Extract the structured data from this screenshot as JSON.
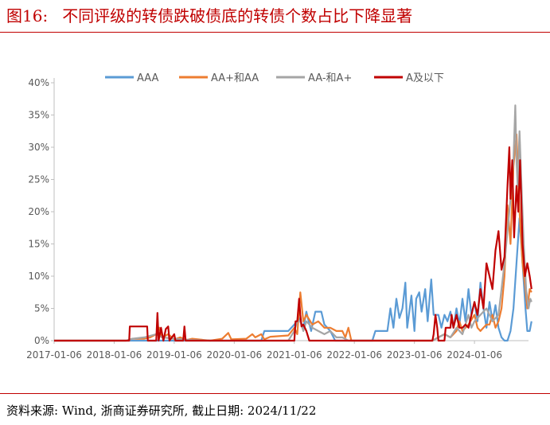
{
  "header": {
    "fig_label": "图16:",
    "title": "不同评级的转债跌破债底的转债个数占比下降显著"
  },
  "footer": {
    "source": "资料来源: Wind, 浙商证券研究所, 截止日期: 2024/11/22"
  },
  "chart_data": {
    "type": "line",
    "y_ticks": [
      "0%",
      "5%",
      "10%",
      "15%",
      "20%",
      "25%",
      "30%",
      "35%",
      "40%"
    ],
    "ylim": [
      0,
      40
    ],
    "x_ticks": [
      "2017-01-06",
      "2018-01-06",
      "2019-01-06",
      "2020-01-06",
      "2021-01-06",
      "2022-01-06",
      "2023-01-06",
      "2024-01-06"
    ],
    "xlim": [
      2017.0,
      2024.9
    ],
    "legend_position": "top",
    "grid": false,
    "series": [
      {
        "name": "AAA",
        "color": "#5b9bd5",
        "points": [
          [
            2017.0,
            0
          ],
          [
            2020.45,
            0
          ],
          [
            2020.5,
            1.5
          ],
          [
            2020.9,
            1.5
          ],
          [
            2021.0,
            2.5
          ],
          [
            2021.08,
            3.5
          ],
          [
            2021.15,
            2
          ],
          [
            2021.2,
            4.5
          ],
          [
            2021.28,
            1.5
          ],
          [
            2021.35,
            4.5
          ],
          [
            2021.45,
            4.5
          ],
          [
            2021.5,
            2.5
          ],
          [
            2021.6,
            1.5
          ],
          [
            2021.68,
            0
          ],
          [
            2022.3,
            0
          ],
          [
            2022.35,
            1.5
          ],
          [
            2022.55,
            1.5
          ],
          [
            2022.6,
            5
          ],
          [
            2022.65,
            2
          ],
          [
            2022.7,
            6.5
          ],
          [
            2022.75,
            3.5
          ],
          [
            2022.8,
            5
          ],
          [
            2022.85,
            9
          ],
          [
            2022.88,
            2
          ],
          [
            2022.95,
            7
          ],
          [
            2023.0,
            1.5
          ],
          [
            2023.03,
            6.5
          ],
          [
            2023.08,
            7.5
          ],
          [
            2023.12,
            4.5
          ],
          [
            2023.18,
            8
          ],
          [
            2023.22,
            3
          ],
          [
            2023.28,
            9.5
          ],
          [
            2023.32,
            4
          ],
          [
            2023.4,
            4
          ],
          [
            2023.45,
            2
          ],
          [
            2023.5,
            4
          ],
          [
            2023.55,
            3
          ],
          [
            2023.6,
            4.5
          ],
          [
            2023.65,
            2
          ],
          [
            2023.7,
            5
          ],
          [
            2023.75,
            2.5
          ],
          [
            2023.8,
            6.5
          ],
          [
            2023.85,
            3
          ],
          [
            2023.9,
            8
          ],
          [
            2023.95,
            4
          ],
          [
            2024.0,
            6
          ],
          [
            2024.05,
            3
          ],
          [
            2024.1,
            9
          ],
          [
            2024.15,
            5
          ],
          [
            2024.2,
            2
          ],
          [
            2024.25,
            6
          ],
          [
            2024.3,
            3
          ],
          [
            2024.35,
            5.5
          ],
          [
            2024.4,
            2
          ],
          [
            2024.45,
            0.5
          ],
          [
            2024.5,
            0
          ],
          [
            2024.55,
            0
          ],
          [
            2024.6,
            1.5
          ],
          [
            2024.65,
            5
          ],
          [
            2024.7,
            12
          ],
          [
            2024.75,
            19
          ],
          [
            2024.8,
            12
          ],
          [
            2024.85,
            5
          ],
          [
            2024.88,
            1.5
          ],
          [
            2024.92,
            1.5
          ],
          [
            2024.95,
            3
          ]
        ]
      },
      {
        "name": "AA+和AA",
        "color": "#ed7d31",
        "points": [
          [
            2017.0,
            0
          ],
          [
            2018.2,
            0
          ],
          [
            2018.3,
            0.3
          ],
          [
            2018.5,
            0.3
          ],
          [
            2018.6,
            0.5
          ],
          [
            2018.7,
            1
          ],
          [
            2018.75,
            2
          ],
          [
            2018.8,
            0.5
          ],
          [
            2018.9,
            1
          ],
          [
            2019.0,
            0.2
          ],
          [
            2019.1,
            0.5
          ],
          [
            2019.2,
            0.1
          ],
          [
            2019.3,
            0.3
          ],
          [
            2019.6,
            0
          ],
          [
            2019.8,
            0.3
          ],
          [
            2019.9,
            1.2
          ],
          [
            2019.95,
            0.2
          ],
          [
            2020.2,
            0.3
          ],
          [
            2020.3,
            1
          ],
          [
            2020.35,
            0.5
          ],
          [
            2020.45,
            1
          ],
          [
            2020.5,
            0.2
          ],
          [
            2020.6,
            0.6
          ],
          [
            2020.9,
            0.8
          ],
          [
            2021.0,
            2
          ],
          [
            2021.05,
            1
          ],
          [
            2021.1,
            7.5
          ],
          [
            2021.15,
            3
          ],
          [
            2021.2,
            4
          ],
          [
            2021.3,
            2.5
          ],
          [
            2021.4,
            3
          ],
          [
            2021.5,
            2
          ],
          [
            2021.6,
            2
          ],
          [
            2021.7,
            1.5
          ],
          [
            2021.8,
            1.5
          ],
          [
            2021.85,
            0.5
          ],
          [
            2021.9,
            2
          ],
          [
            2021.95,
            0
          ],
          [
            2023.3,
            0
          ],
          [
            2023.4,
            0.5
          ],
          [
            2023.5,
            1
          ],
          [
            2023.6,
            0.5
          ],
          [
            2023.7,
            1.5
          ],
          [
            2023.75,
            3
          ],
          [
            2023.8,
            1.5
          ],
          [
            2023.9,
            2.5
          ],
          [
            2024.0,
            4
          ],
          [
            2024.05,
            2
          ],
          [
            2024.1,
            1.5
          ],
          [
            2024.15,
            2
          ],
          [
            2024.2,
            2.5
          ],
          [
            2024.25,
            2.5
          ],
          [
            2024.3,
            4
          ],
          [
            2024.35,
            2
          ],
          [
            2024.4,
            3
          ],
          [
            2024.45,
            5
          ],
          [
            2024.5,
            10
          ],
          [
            2024.55,
            21
          ],
          [
            2024.6,
            15
          ],
          [
            2024.65,
            27
          ],
          [
            2024.7,
            32
          ],
          [
            2024.75,
            20
          ],
          [
            2024.8,
            12
          ],
          [
            2024.85,
            8
          ],
          [
            2024.88,
            5
          ],
          [
            2024.92,
            8
          ],
          [
            2024.95,
            7.5
          ]
        ]
      },
      {
        "name": "AA-和A+",
        "color": "#a5a5a5",
        "points": [
          [
            2017.0,
            0
          ],
          [
            2018.2,
            0
          ],
          [
            2018.3,
            0.3
          ],
          [
            2018.5,
            0.5
          ],
          [
            2018.7,
            1
          ],
          [
            2018.8,
            0.5
          ],
          [
            2019.0,
            0.3
          ],
          [
            2019.3,
            0.1
          ],
          [
            2019.6,
            0
          ],
          [
            2020.9,
            0
          ],
          [
            2021.0,
            1.5
          ],
          [
            2021.05,
            3
          ],
          [
            2021.1,
            3
          ],
          [
            2021.15,
            1.5
          ],
          [
            2021.2,
            3
          ],
          [
            2021.3,
            2
          ],
          [
            2021.4,
            1.5
          ],
          [
            2021.5,
            1
          ],
          [
            2021.6,
            1.5
          ],
          [
            2021.7,
            0.5
          ],
          [
            2021.8,
            0.5
          ],
          [
            2021.9,
            0
          ],
          [
            2023.3,
            0
          ],
          [
            2023.5,
            1
          ],
          [
            2023.6,
            0.5
          ],
          [
            2023.7,
            2
          ],
          [
            2023.8,
            1
          ],
          [
            2023.85,
            2.5
          ],
          [
            2023.9,
            4
          ],
          [
            2023.95,
            2
          ],
          [
            2024.0,
            3
          ],
          [
            2024.1,
            4
          ],
          [
            2024.2,
            5
          ],
          [
            2024.3,
            3
          ],
          [
            2024.4,
            4
          ],
          [
            2024.45,
            8
          ],
          [
            2024.5,
            12
          ],
          [
            2024.55,
            17
          ],
          [
            2024.6,
            22
          ],
          [
            2024.65,
            28
          ],
          [
            2024.68,
            36.5
          ],
          [
            2024.7,
            28
          ],
          [
            2024.72,
            24
          ],
          [
            2024.75,
            32.5
          ],
          [
            2024.78,
            25
          ],
          [
            2024.82,
            15
          ],
          [
            2024.86,
            8
          ],
          [
            2024.9,
            5
          ],
          [
            2024.93,
            6.5
          ],
          [
            2024.95,
            6
          ]
        ]
      },
      {
        "name": "A及以下",
        "color": "#c00000",
        "points": [
          [
            2017.0,
            0
          ],
          [
            2018.25,
            0
          ],
          [
            2018.26,
            2.2
          ],
          [
            2018.55,
            2.2
          ],
          [
            2018.56,
            0
          ],
          [
            2018.7,
            0
          ],
          [
            2018.72,
            4.3
          ],
          [
            2018.74,
            0
          ],
          [
            2018.78,
            2
          ],
          [
            2018.82,
            0
          ],
          [
            2018.86,
            1.8
          ],
          [
            2018.9,
            2.2
          ],
          [
            2018.92,
            0
          ],
          [
            2019.0,
            1
          ],
          [
            2019.02,
            0
          ],
          [
            2019.15,
            0
          ],
          [
            2019.17,
            2.2
          ],
          [
            2019.19,
            0
          ],
          [
            2021.0,
            0
          ],
          [
            2021.02,
            3
          ],
          [
            2021.05,
            3
          ],
          [
            2021.08,
            6.5
          ],
          [
            2021.1,
            4
          ],
          [
            2021.12,
            2.2
          ],
          [
            2021.15,
            2.5
          ],
          [
            2021.2,
            1.5
          ],
          [
            2021.25,
            0
          ],
          [
            2023.3,
            0
          ],
          [
            2023.32,
            1
          ],
          [
            2023.35,
            4
          ],
          [
            2023.38,
            2
          ],
          [
            2023.4,
            0
          ],
          [
            2023.5,
            0
          ],
          [
            2023.52,
            2
          ],
          [
            2023.6,
            2
          ],
          [
            2023.62,
            4
          ],
          [
            2023.65,
            2
          ],
          [
            2023.7,
            4
          ],
          [
            2023.75,
            2
          ],
          [
            2023.8,
            2
          ],
          [
            2023.85,
            2.5
          ],
          [
            2023.9,
            2
          ],
          [
            2023.95,
            4
          ],
          [
            2024.0,
            6
          ],
          [
            2024.05,
            4
          ],
          [
            2024.1,
            8
          ],
          [
            2024.15,
            5
          ],
          [
            2024.2,
            12
          ],
          [
            2024.25,
            10
          ],
          [
            2024.3,
            8
          ],
          [
            2024.35,
            14
          ],
          [
            2024.4,
            17
          ],
          [
            2024.45,
            11
          ],
          [
            2024.5,
            13
          ],
          [
            2024.55,
            24
          ],
          [
            2024.58,
            30
          ],
          [
            2024.6,
            22
          ],
          [
            2024.63,
            28
          ],
          [
            2024.66,
            16
          ],
          [
            2024.7,
            24
          ],
          [
            2024.73,
            20
          ],
          [
            2024.76,
            28
          ],
          [
            2024.8,
            15
          ],
          [
            2024.84,
            10
          ],
          [
            2024.88,
            12
          ],
          [
            2024.92,
            10
          ],
          [
            2024.95,
            8
          ]
        ]
      }
    ]
  }
}
